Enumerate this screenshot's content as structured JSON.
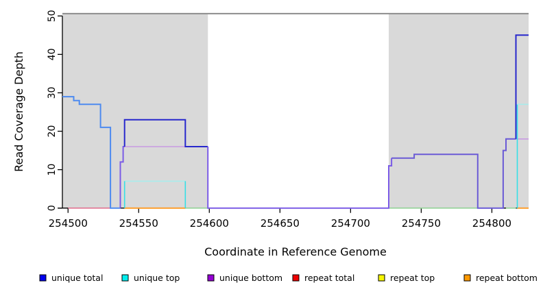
{
  "chart_data": {
    "type": "line",
    "subtype": "step-coverage-plot",
    "title": "",
    "xlabel": "Coordinate in Reference Genome",
    "ylabel": "Read Coverage Depth",
    "xlim": [
      254496,
      254826
    ],
    "ylim": [
      0,
      50
    ],
    "xticks": [
      254500,
      254550,
      254600,
      254650,
      254700,
      254750,
      254800
    ],
    "yticks": [
      0,
      10,
      20,
      30,
      40,
      50
    ],
    "grid": "off",
    "legend_position": "bottom",
    "shaded_regions": [
      {
        "x0": 254496,
        "x1": 254599
      },
      {
        "x0": 254727,
        "x1": 254826
      }
    ],
    "region_fill": "#d9d9d9",
    "top_rule": {
      "y": 50.6,
      "color": "#8c8c8c",
      "width": 2
    },
    "legend": [
      {
        "label": "unique total",
        "color": "#0000ee"
      },
      {
        "label": "unique top",
        "color": "#00eeee"
      },
      {
        "label": "unique bottom",
        "color": "#9400d3"
      },
      {
        "label": "repeat total",
        "color": "#ee0000"
      },
      {
        "label": "repeat top",
        "color": "#f5f500"
      },
      {
        "label": "repeat bottom",
        "color": "#ff9900"
      }
    ],
    "series_steps": {
      "unique_total": [
        [
          254496,
          29
        ],
        [
          254504,
          28
        ],
        [
          254508,
          27
        ],
        [
          254523,
          21
        ],
        [
          254530,
          0
        ],
        [
          254537,
          12
        ],
        [
          254539,
          16
        ],
        [
          254540,
          23
        ],
        [
          254583,
          16
        ],
        [
          254599,
          0
        ],
        [
          254727,
          11
        ],
        [
          254729,
          13
        ],
        [
          254745,
          14
        ],
        [
          254790,
          0
        ],
        [
          254808,
          15
        ],
        [
          254810,
          18
        ],
        [
          254817,
          45
        ],
        [
          254826,
          45
        ]
      ],
      "unique_top": [
        [
          254496,
          0
        ],
        [
          254540,
          7
        ],
        [
          254583,
          0
        ],
        [
          254817,
          27
        ],
        [
          254826,
          27
        ]
      ],
      "unique_bottom": [
        [
          254496,
          0
        ],
        [
          254537,
          12
        ],
        [
          254539,
          16
        ],
        [
          254599,
          0
        ],
        [
          254727,
          11
        ],
        [
          254729,
          13
        ],
        [
          254745,
          14
        ],
        [
          254790,
          0
        ],
        [
          254808,
          15
        ],
        [
          254810,
          18
        ],
        [
          254826,
          18
        ]
      ],
      "repeat_total": [
        [
          254500,
          0
        ],
        [
          254826,
          0
        ]
      ],
      "repeat_top": [
        [
          254500,
          0
        ],
        [
          254826,
          0
        ]
      ],
      "repeat_bottom": [
        [
          254500,
          0
        ],
        [
          254826,
          0
        ]
      ]
    },
    "drawn_segments": [
      {
        "name": "repeat-total-zero",
        "color": "#e0708e",
        "width": 1.6,
        "points": [
          [
            254500,
            0
          ],
          [
            254530,
            0
          ]
        ]
      },
      {
        "name": "repeat-zero-green-1",
        "color": "#90d095",
        "width": 1.6,
        "points": [
          [
            254583,
            0
          ],
          [
            254599,
            0
          ]
        ]
      },
      {
        "name": "repeat-zero-green-2",
        "color": "#90d095",
        "width": 1.6,
        "points": [
          [
            254727,
            0
          ],
          [
            254790,
            0
          ]
        ]
      },
      {
        "name": "repeat-zero-green-3",
        "color": "#90d095",
        "width": 1.6,
        "points": [
          [
            254810,
            0
          ],
          [
            254817,
            0
          ]
        ]
      },
      {
        "name": "repeat-bottom-zero-1",
        "color": "#ff9e2c",
        "width": 2,
        "points": [
          [
            254540,
            0
          ],
          [
            254583,
            0
          ]
        ]
      },
      {
        "name": "repeat-bottom-zero-2",
        "color": "#ff9e2c",
        "width": 2,
        "points": [
          [
            254818,
            0
          ],
          [
            254826,
            0
          ]
        ]
      },
      {
        "name": "unique-top-h-left",
        "color": "#a8ecec",
        "width": 1.6,
        "points": [
          [
            254540,
            7
          ],
          [
            254583,
            7
          ]
        ]
      },
      {
        "name": "unique-top-v-1",
        "color": "#35dfe6",
        "width": 1.6,
        "points": [
          [
            254540,
            0
          ],
          [
            254540,
            7
          ]
        ]
      },
      {
        "name": "unique-top-v-2",
        "color": "#35dfe6",
        "width": 1.6,
        "points": [
          [
            254583,
            0
          ],
          [
            254583,
            7
          ]
        ]
      },
      {
        "name": "unique-bottom-h-left",
        "color": "#c89ae2",
        "width": 1.6,
        "points": [
          [
            254539,
            16
          ],
          [
            254583,
            16
          ]
        ]
      },
      {
        "name": "unique-bottom-h-right",
        "color": "#c89ae2",
        "width": 1.6,
        "points": [
          [
            254810,
            18
          ],
          [
            254826,
            18
          ]
        ]
      },
      {
        "name": "unique-total-left",
        "color": "#4d8af0",
        "width": 2,
        "points": [
          [
            254496,
            29
          ],
          [
            254504,
            29
          ],
          [
            254504,
            28
          ],
          [
            254508,
            28
          ],
          [
            254508,
            27
          ],
          [
            254523,
            27
          ],
          [
            254523,
            21
          ],
          [
            254530,
            21
          ],
          [
            254530,
            0
          ],
          [
            254537,
            0
          ]
        ]
      },
      {
        "name": "unique-bottom-rise-left",
        "color": "#7b5ce6",
        "width": 2,
        "points": [
          [
            254537,
            0
          ],
          [
            254537,
            12
          ],
          [
            254539,
            12
          ],
          [
            254539,
            16
          ],
          [
            254540,
            16
          ]
        ]
      },
      {
        "name": "unique-total-plateau-23",
        "color": "#2727cc",
        "width": 2,
        "points": [
          [
            254540,
            16
          ],
          [
            254540,
            23
          ],
          [
            254583,
            23
          ],
          [
            254583,
            16
          ],
          [
            254599,
            16
          ]
        ]
      },
      {
        "name": "unique-zero-mid",
        "color": "#7b5ce6",
        "width": 2,
        "points": [
          [
            254599,
            16
          ],
          [
            254599,
            0
          ],
          [
            254727,
            0
          ],
          [
            254727,
            11
          ],
          [
            254729,
            11
          ],
          [
            254729,
            13
          ]
        ]
      },
      {
        "name": "unique-bottom-right",
        "color": "#6a5ad6",
        "width": 2,
        "points": [
          [
            254729,
            13
          ],
          [
            254745,
            13
          ],
          [
            254745,
            14
          ],
          [
            254790,
            14
          ],
          [
            254790,
            0
          ],
          [
            254808,
            0
          ],
          [
            254808,
            15
          ],
          [
            254810,
            15
          ],
          [
            254810,
            18
          ],
          [
            254817,
            18
          ]
        ]
      },
      {
        "name": "unique-top-v-right",
        "color": "#35dfe6",
        "width": 1.6,
        "points": [
          [
            254818,
            0
          ],
          [
            254818,
            27
          ]
        ]
      },
      {
        "name": "unique-top-h-right",
        "color": "#a8ecec",
        "width": 1.6,
        "points": [
          [
            254818,
            27
          ],
          [
            254826,
            27
          ]
        ]
      },
      {
        "name": "unique-total-spike",
        "color": "#2727cc",
        "width": 2,
        "points": [
          [
            254817,
            18
          ],
          [
            254817,
            45
          ],
          [
            254826,
            45
          ]
        ]
      }
    ]
  },
  "colors": {
    "axis": "#000000",
    "text": "#000000",
    "background": "#ffffff"
  }
}
